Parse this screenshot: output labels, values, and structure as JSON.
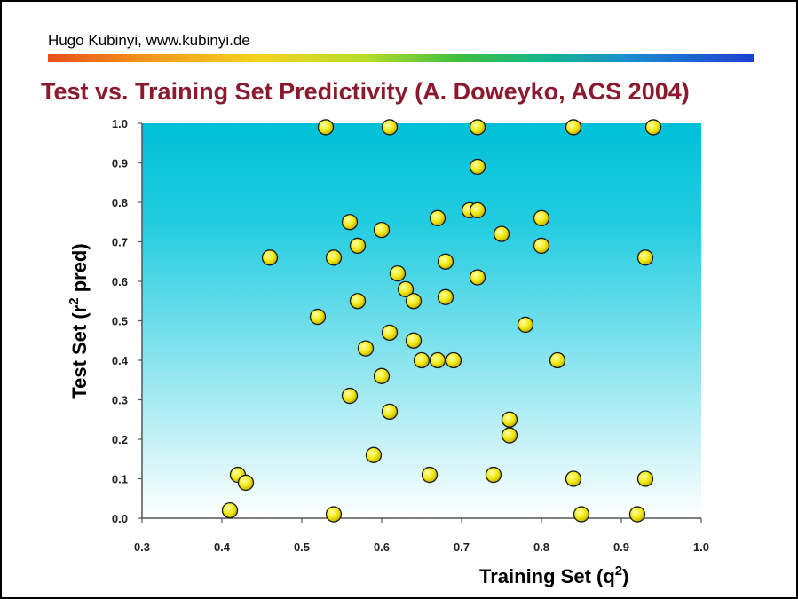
{
  "header": {
    "author": "Hugo Kubinyi, www.kubinyi.de",
    "title": "Test vs. Training Set Predictivity (A. Doweyko, ACS 2004)"
  },
  "colors": {
    "title": "#8b1a2e",
    "plot_top": "#00c0d8",
    "plot_bottom": "#ffffff",
    "point_fill": "#f2ea10",
    "point_stroke": "#1a1a1a"
  },
  "chart_data": {
    "type": "scatter",
    "title": "Test vs. Training Set Predictivity (A. Doweyko, ACS 2004)",
    "xlabel": {
      "main": "Training Set (q",
      "sup": "2",
      "end": ")"
    },
    "ylabel": {
      "main": "Test Set (r",
      "sup": "2",
      "end": " pred)"
    },
    "xlim": [
      0.3,
      1.0
    ],
    "ylim": [
      0.0,
      1.0
    ],
    "xticks": [
      "0.3",
      "0.4",
      "0.5",
      "0.6",
      "0.7",
      "0.8",
      "0.9",
      "1.0"
    ],
    "yticks": [
      "0.0",
      "0.1",
      "0.2",
      "0.3",
      "0.4",
      "0.5",
      "0.6",
      "0.7",
      "0.8",
      "0.9",
      "1.0"
    ],
    "grid": false,
    "points": [
      {
        "x": 0.53,
        "y": 0.99
      },
      {
        "x": 0.61,
        "y": 0.99
      },
      {
        "x": 0.72,
        "y": 0.99
      },
      {
        "x": 0.84,
        "y": 0.99
      },
      {
        "x": 0.94,
        "y": 0.99
      },
      {
        "x": 0.72,
        "y": 0.89
      },
      {
        "x": 0.71,
        "y": 0.78
      },
      {
        "x": 0.72,
        "y": 0.78
      },
      {
        "x": 0.56,
        "y": 0.75
      },
      {
        "x": 0.67,
        "y": 0.76
      },
      {
        "x": 0.8,
        "y": 0.76
      },
      {
        "x": 0.6,
        "y": 0.73
      },
      {
        "x": 0.75,
        "y": 0.72
      },
      {
        "x": 0.57,
        "y": 0.69
      },
      {
        "x": 0.8,
        "y": 0.69
      },
      {
        "x": 0.46,
        "y": 0.66
      },
      {
        "x": 0.54,
        "y": 0.66
      },
      {
        "x": 0.68,
        "y": 0.65
      },
      {
        "x": 0.93,
        "y": 0.66
      },
      {
        "x": 0.62,
        "y": 0.62
      },
      {
        "x": 0.72,
        "y": 0.61
      },
      {
        "x": 0.63,
        "y": 0.58
      },
      {
        "x": 0.68,
        "y": 0.56
      },
      {
        "x": 0.57,
        "y": 0.55
      },
      {
        "x": 0.64,
        "y": 0.55
      },
      {
        "x": 0.52,
        "y": 0.51
      },
      {
        "x": 0.78,
        "y": 0.49
      },
      {
        "x": 0.61,
        "y": 0.47
      },
      {
        "x": 0.64,
        "y": 0.45
      },
      {
        "x": 0.58,
        "y": 0.43
      },
      {
        "x": 0.65,
        "y": 0.4
      },
      {
        "x": 0.67,
        "y": 0.4
      },
      {
        "x": 0.69,
        "y": 0.4
      },
      {
        "x": 0.82,
        "y": 0.4
      },
      {
        "x": 0.6,
        "y": 0.36
      },
      {
        "x": 0.56,
        "y": 0.31
      },
      {
        "x": 0.61,
        "y": 0.27
      },
      {
        "x": 0.76,
        "y": 0.25
      },
      {
        "x": 0.76,
        "y": 0.21
      },
      {
        "x": 0.59,
        "y": 0.16
      },
      {
        "x": 0.42,
        "y": 0.11
      },
      {
        "x": 0.43,
        "y": 0.09
      },
      {
        "x": 0.66,
        "y": 0.11
      },
      {
        "x": 0.74,
        "y": 0.11
      },
      {
        "x": 0.84,
        "y": 0.1
      },
      {
        "x": 0.93,
        "y": 0.1
      },
      {
        "x": 0.41,
        "y": 0.02
      },
      {
        "x": 0.54,
        "y": 0.01
      },
      {
        "x": 0.85,
        "y": 0.01
      },
      {
        "x": 0.92,
        "y": 0.01
      }
    ]
  }
}
